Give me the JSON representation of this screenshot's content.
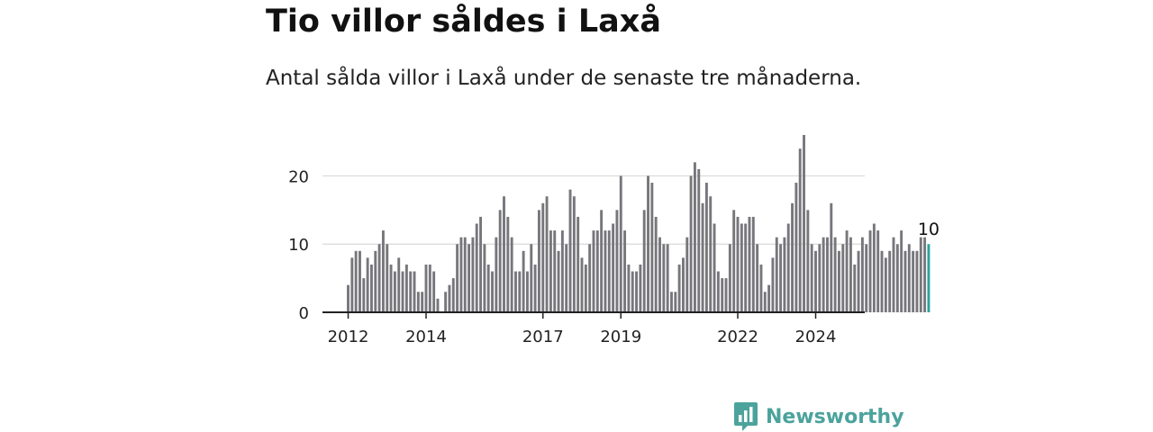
{
  "title": "Tio villor såldes i Laxå",
  "subtitle": "Antal sålda villor i Laxå under de senaste tre månaderna.",
  "brand": {
    "name": "Newsworthy",
    "logo_icon": "newsworthy-chart-logo-icon"
  },
  "colors": {
    "bar": "#77767b",
    "highlight": "#2aa39a",
    "grid": "#d9d9d9",
    "axis": "#222222",
    "brand": "#4ba39c"
  },
  "chart_data": {
    "type": "bar",
    "title": "",
    "xlabel": "",
    "ylabel": "",
    "ylim": [
      0,
      26
    ],
    "grid": true,
    "y_ticks": [
      0,
      10,
      20
    ],
    "x_ticks": [
      "2012",
      "2014",
      "2017",
      "2019",
      "2022",
      "2024"
    ],
    "x_tick_positions": [
      0,
      20,
      50,
      70,
      100,
      120
    ],
    "highlight_label": "10",
    "values": [
      4,
      8,
      9,
      9,
      5,
      8,
      7,
      9,
      10,
      12,
      10,
      7,
      6,
      8,
      6,
      7,
      6,
      6,
      3,
      3,
      7,
      7,
      6,
      2,
      0,
      3,
      4,
      5,
      10,
      11,
      11,
      10,
      11,
      13,
      14,
      10,
      7,
      6,
      11,
      15,
      17,
      14,
      11,
      6,
      6,
      9,
      6,
      10,
      7,
      15,
      16,
      17,
      12,
      12,
      9,
      12,
      10,
      18,
      17,
      14,
      8,
      7,
      10,
      12,
      12,
      15,
      12,
      12,
      13,
      15,
      20,
      12,
      7,
      6,
      6,
      7,
      15,
      20,
      19,
      14,
      11,
      10,
      10,
      3,
      3,
      7,
      8,
      11,
      20,
      22,
      21,
      16,
      19,
      17,
      13,
      6,
      5,
      5,
      10,
      15,
      14,
      13,
      13,
      14,
      14,
      10,
      7,
      3,
      4,
      8,
      11,
      10,
      11,
      13,
      16,
      19,
      24,
      26,
      15,
      10,
      9,
      10,
      11,
      11,
      16,
      11,
      9,
      10,
      12,
      11,
      7,
      9,
      11,
      10,
      12,
      13,
      12,
      9,
      8,
      9,
      11,
      10,
      12,
      9,
      10,
      9,
      9,
      11,
      11,
      10
    ]
  }
}
